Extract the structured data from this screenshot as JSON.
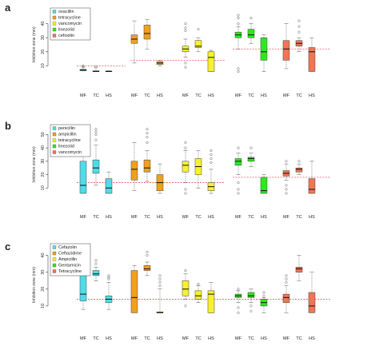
{
  "colors": {
    "cyan": "#4fdce8",
    "orange": "#f0a020",
    "yellow": "#f7f22a",
    "green": "#2ee81e",
    "red": "#f07555",
    "threshold": "#e8575a"
  },
  "chart_data": [
    {
      "panel_label": "a",
      "type": "box",
      "ylabel": "Inhibition zone (mm)",
      "ylim": [
        0,
        50
      ],
      "yticks": [
        10,
        20,
        30,
        40
      ],
      "x_groups": [
        "MF",
        "TC",
        "HS"
      ],
      "legend": [
        {
          "name": "oxacillin",
          "color": "cyan"
        },
        {
          "name": "tetracycline",
          "color": "orange"
        },
        {
          "name": "vancomycin",
          "color": "yellow"
        },
        {
          "name": "linezolid",
          "color": "green"
        },
        {
          "name": "cefoxitin",
          "color": "red"
        }
      ],
      "series": [
        {
          "name": "oxacillin",
          "color": "cyan",
          "boxes": [
            {
              "group": "MF",
              "whislo": 6.5,
              "q1": 6.5,
              "med": 7,
              "q3": 7.5,
              "whishi": 9,
              "fliers": [
                9.5,
                10
              ]
            },
            {
              "group": "TC",
              "whislo": 6,
              "q1": 6,
              "med": 6,
              "q3": 6.5,
              "whishi": 9,
              "fliers": [
                9.5
              ]
            },
            {
              "group": "HS",
              "whislo": 6,
              "q1": 6,
              "med": 6,
              "q3": 6.3,
              "whishi": 6.5,
              "fliers": []
            }
          ]
        },
        {
          "name": "tetracycline",
          "color": "orange",
          "boxes": [
            {
              "group": "MF",
              "whislo": 12,
              "q1": 26,
              "med": 29,
              "q3": 32,
              "whishi": 42,
              "fliers": []
            },
            {
              "group": "TC",
              "whislo": 22,
              "q1": 29,
              "med": 33,
              "q3": 39,
              "whishi": 43,
              "fliers": []
            },
            {
              "group": "HS",
              "whislo": 10,
              "q1": 11,
              "med": 12,
              "q3": 13,
              "whishi": 14,
              "fliers": []
            }
          ]
        },
        {
          "name": "vancomycin",
          "color": "yellow",
          "boxes": [
            {
              "group": "MF",
              "whislo": 16,
              "q1": 20,
              "med": 22,
              "q3": 24,
              "whishi": 29,
              "fliers": [
                9,
                12,
                35,
                37,
                40
              ]
            },
            {
              "group": "TC",
              "whislo": 20,
              "q1": 23,
              "med": 24,
              "q3": 28,
              "whishi": 30,
              "fliers": [
                36
              ]
            },
            {
              "group": "HS",
              "whislo": 6,
              "q1": 6,
              "med": 16,
              "q3": 20,
              "whishi": 21,
              "fliers": []
            }
          ]
        },
        {
          "name": "linezolid",
          "color": "green",
          "boxes": [
            {
              "group": "MF",
              "whislo": 22,
              "q1": 30,
              "med": 32,
              "q3": 34,
              "whishi": 38,
              "fliers": [
                6,
                8,
                40,
                44,
                46
              ]
            },
            {
              "group": "TC",
              "whislo": 26,
              "q1": 30,
              "med": 32,
              "q3": 36,
              "whishi": 40,
              "fliers": [
                44
              ]
            },
            {
              "group": "HS",
              "whislo": 6,
              "q1": 14,
              "med": 20,
              "q3": 30,
              "whishi": 32,
              "fliers": []
            }
          ]
        },
        {
          "name": "cefoxitin",
          "color": "red",
          "boxes": [
            {
              "group": "MF",
              "whislo": 8,
              "q1": 14,
              "med": 22,
              "q3": 28,
              "whishi": 40,
              "fliers": []
            },
            {
              "group": "TC",
              "whislo": 20,
              "q1": 24,
              "med": 26,
              "q3": 28,
              "whishi": 30,
              "fliers": [
                34,
                38,
                42
              ]
            },
            {
              "group": "HS",
              "whislo": 6,
              "q1": 6,
              "med": 20,
              "q3": 23,
              "whishi": 30,
              "fliers": []
            }
          ]
        }
      ],
      "thresholds": [
        {
          "x_from": 0.5,
          "x_to": 1.45,
          "y": 10
        },
        {
          "x_from": 1.55,
          "x_to": 3.4,
          "y": 14
        },
        {
          "x_from": 3.55,
          "x_to": 5.45,
          "y": 22
        }
      ]
    },
    {
      "panel_label": "b",
      "type": "box",
      "ylabel": "Inhibition zone (mm)",
      "ylim": [
        0,
        55
      ],
      "yticks": [
        10,
        20,
        30,
        40,
        50
      ],
      "x_groups": [
        "MF",
        "TC",
        "HS"
      ],
      "legend": [
        {
          "name": "penicillin",
          "color": "cyan"
        },
        {
          "name": "ampicillin",
          "color": "orange"
        },
        {
          "name": "tetracycline",
          "color": "yellow"
        },
        {
          "name": "linezolid",
          "color": "green"
        },
        {
          "name": "vancomycin",
          "color": "red"
        }
      ],
      "series": [
        {
          "name": "penicillin",
          "color": "cyan",
          "boxes": [
            {
              "group": "MF",
              "whislo": 6,
              "q1": 6,
              "med": 12,
              "q3": 30,
              "whishi": 42,
              "fliers": []
            },
            {
              "group": "TC",
              "whislo": 12,
              "q1": 21,
              "med": 25,
              "q3": 31,
              "whishi": 42,
              "fliers": [
                46,
                50,
                52,
                54
              ]
            },
            {
              "group": "HS",
              "whislo": 6,
              "q1": 6,
              "med": 10,
              "q3": 17,
              "whishi": 22,
              "fliers": []
            }
          ]
        },
        {
          "name": "ampicillin",
          "color": "orange",
          "boxes": [
            {
              "group": "MF",
              "whislo": 8,
              "q1": 16,
              "med": 24,
              "q3": 30,
              "whishi": 44,
              "fliers": []
            },
            {
              "group": "TC",
              "whislo": 15,
              "q1": 22,
              "med": 25,
              "q3": 31,
              "whishi": 38,
              "fliers": [
                44,
                48,
                51,
                54
              ]
            },
            {
              "group": "HS",
              "whislo": 6,
              "q1": 8,
              "med": 14,
              "q3": 20,
              "whishi": 28,
              "fliers": []
            }
          ]
        },
        {
          "name": "tetracycline",
          "color": "yellow",
          "boxes": [
            {
              "group": "MF",
              "whislo": 14,
              "q1": 22,
              "med": 27,
              "q3": 30,
              "whishi": 38,
              "fliers": [
                6,
                9,
                40,
                44
              ]
            },
            {
              "group": "TC",
              "whislo": 10,
              "q1": 20,
              "med": 26,
              "q3": 32,
              "whishi": 38,
              "fliers": []
            },
            {
              "group": "HS",
              "whislo": 6,
              "q1": 8,
              "med": 11,
              "q3": 14,
              "whishi": 24,
              "fliers": [
                29,
                32,
                35,
                38
              ]
            }
          ]
        },
        {
          "name": "linezolid",
          "color": "green",
          "boxes": [
            {
              "group": "MF",
              "whislo": 20,
              "q1": 27,
              "med": 30,
              "q3": 32,
              "whishi": 36,
              "fliers": [
                6,
                9,
                14,
                40
              ]
            },
            {
              "group": "TC",
              "whislo": 26,
              "q1": 30,
              "med": 32,
              "q3": 33,
              "whishi": 36,
              "fliers": [
                40
              ]
            },
            {
              "group": "HS",
              "whislo": 6,
              "q1": 6,
              "med": 8,
              "q3": 18,
              "whishi": 20,
              "fliers": []
            }
          ]
        },
        {
          "name": "vancomycin",
          "color": "red",
          "boxes": [
            {
              "group": "MF",
              "whislo": 16,
              "q1": 19,
              "med": 21,
              "q3": 23,
              "whishi": 28,
              "fliers": [
                6,
                9,
                12,
                30
              ]
            },
            {
              "group": "TC",
              "whislo": 20,
              "q1": 22,
              "med": 24,
              "q3": 25,
              "whishi": 28,
              "fliers": [
                30
              ]
            },
            {
              "group": "HS",
              "whislo": 6,
              "q1": 6,
              "med": 9,
              "q3": 17,
              "whishi": 30,
              "fliers": []
            }
          ]
        }
      ],
      "thresholds": [
        {
          "x_from": 0.5,
          "x_to": 3.4,
          "y": 14
        },
        {
          "x_from": 3.55,
          "x_to": 5.45,
          "y": 18
        }
      ]
    },
    {
      "panel_label": "c",
      "type": "box",
      "ylabel": "Inhibition zone (mm)",
      "ylim": [
        0,
        45
      ],
      "yticks": [
        10,
        20,
        30,
        40
      ],
      "x_groups": [
        "MF",
        "TC",
        "HS"
      ],
      "legend": [
        {
          "name": "Cefazolin",
          "color": "cyan"
        },
        {
          "name": "Ceftazidime",
          "color": "orange"
        },
        {
          "name": "Ampicillin",
          "color": "yellow"
        },
        {
          "name": "Gentamicin",
          "color": "green"
        },
        {
          "name": "Tetracycline",
          "color": "red"
        }
      ],
      "series": [
        {
          "name": "Cefazolin",
          "color": "cyan",
          "boxes": [
            {
              "group": "MF",
              "whislo": 8,
              "q1": 13,
              "med": 17,
              "q3": 29,
              "whishi": 38,
              "fliers": []
            },
            {
              "group": "TC",
              "whislo": 25,
              "q1": 28,
              "med": 29,
              "q3": 31,
              "whishi": 33,
              "fliers": [
                35,
                37
              ]
            },
            {
              "group": "HS",
              "whislo": 8,
              "q1": 12,
              "med": 14,
              "q3": 16,
              "whishi": 24,
              "fliers": [
                26,
                27,
                28
              ]
            }
          ]
        },
        {
          "name": "Ceftazidime",
          "color": "orange",
          "boxes": [
            {
              "group": "MF",
              "whislo": 6,
              "q1": 6,
              "med": 15,
              "q3": 31,
              "whishi": 34,
              "fliers": []
            },
            {
              "group": "TC",
              "whislo": 28,
              "q1": 31,
              "med": 32,
              "q3": 34,
              "whishi": 36,
              "fliers": [
                40,
                42
              ]
            },
            {
              "group": "HS",
              "whislo": 6,
              "q1": 6,
              "med": 6,
              "q3": 6.5,
              "whishi": 20,
              "fliers": [
                22,
                24,
                26,
                28
              ]
            }
          ]
        },
        {
          "name": "Ampicillin",
          "color": "yellow",
          "boxes": [
            {
              "group": "MF",
              "whislo": 14,
              "q1": 16,
              "med": 20,
              "q3": 25,
              "whishi": 29,
              "fliers": [
                10,
                31
              ]
            },
            {
              "group": "TC",
              "whislo": 12,
              "q1": 14,
              "med": 16,
              "q3": 19,
              "whishi": 22,
              "fliers": [
                23
              ]
            },
            {
              "group": "HS",
              "whislo": 6,
              "q1": 6,
              "med": 17,
              "q3": 19,
              "whishi": 24,
              "fliers": []
            }
          ]
        },
        {
          "name": "Gentamicin",
          "color": "green",
          "boxes": [
            {
              "group": "MF",
              "whislo": 12,
              "q1": 15,
              "med": 16,
              "q3": 17,
              "whishi": 19,
              "fliers": [
                6,
                9,
                20
              ]
            },
            {
              "group": "TC",
              "whislo": 12,
              "q1": 15,
              "med": 16,
              "q3": 18,
              "whishi": 20,
              "fliers": [
                7,
                10
              ]
            },
            {
              "group": "HS",
              "whislo": 6,
              "q1": 10,
              "med": 12,
              "q3": 14,
              "whishi": 15,
              "fliers": [
                16,
                18
              ]
            }
          ]
        },
        {
          "name": "Tetracycline",
          "color": "red",
          "boxes": [
            {
              "group": "MF",
              "whislo": 6,
              "q1": 12,
              "med": 15,
              "q3": 17,
              "whishi": 22,
              "fliers": [
                24,
                26,
                28
              ]
            },
            {
              "group": "TC",
              "whislo": 25,
              "q1": 30,
              "med": 32,
              "q3": 33,
              "whishi": 40,
              "fliers": []
            },
            {
              "group": "HS",
              "whislo": 6,
              "q1": 6,
              "med": 10,
              "q3": 18,
              "whishi": 30,
              "fliers": []
            }
          ]
        }
      ],
      "thresholds": [
        {
          "x_from": 0.5,
          "x_to": 5.45,
          "y": 14
        }
      ]
    }
  ]
}
